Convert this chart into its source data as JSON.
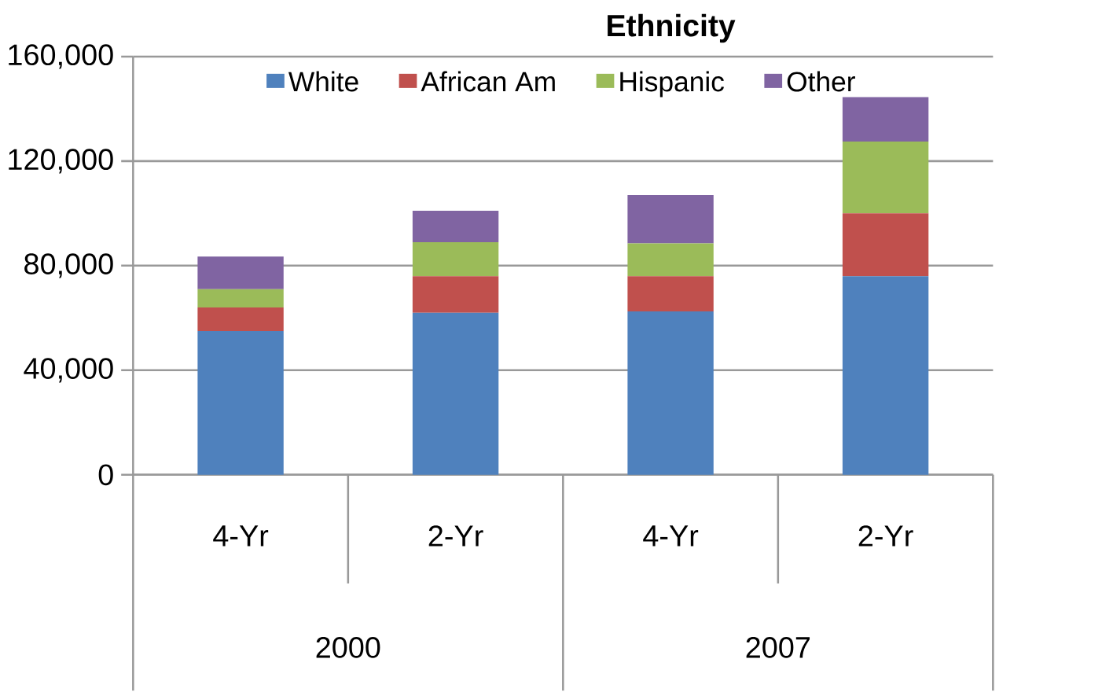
{
  "chart_data": {
    "type": "bar",
    "title": "Ethnicity",
    "stacked": true,
    "categories": [
      "4-Yr",
      "2-Yr",
      "4-Yr",
      "2-Yr"
    ],
    "annotations": [
      "2000",
      "2007"
    ],
    "series": [
      {
        "name": "White",
        "color": "#4f81bd",
        "values": [
          55000,
          62000,
          62500,
          76000
        ]
      },
      {
        "name": "African Am",
        "color": "#c0504d",
        "values": [
          9000,
          14000,
          13500,
          24000
        ]
      },
      {
        "name": "Hispanic",
        "color": "#9bbb59",
        "values": [
          7000,
          13000,
          12500,
          27500
        ]
      },
      {
        "name": "Other",
        "color": "#8064a2",
        "values": [
          12500,
          12000,
          18500,
          17000
        ]
      }
    ],
    "ylim": [
      0,
      160000
    ],
    "yticks": [
      {
        "value": 0,
        "label": "0"
      },
      {
        "value": 40000,
        "label": "40,000"
      },
      {
        "value": 80000,
        "label": "80,000"
      },
      {
        "value": 120000,
        "label": "120,000"
      },
      {
        "value": 160000,
        "label": "160,000"
      }
    ],
    "grid": "y",
    "legend": "top"
  }
}
